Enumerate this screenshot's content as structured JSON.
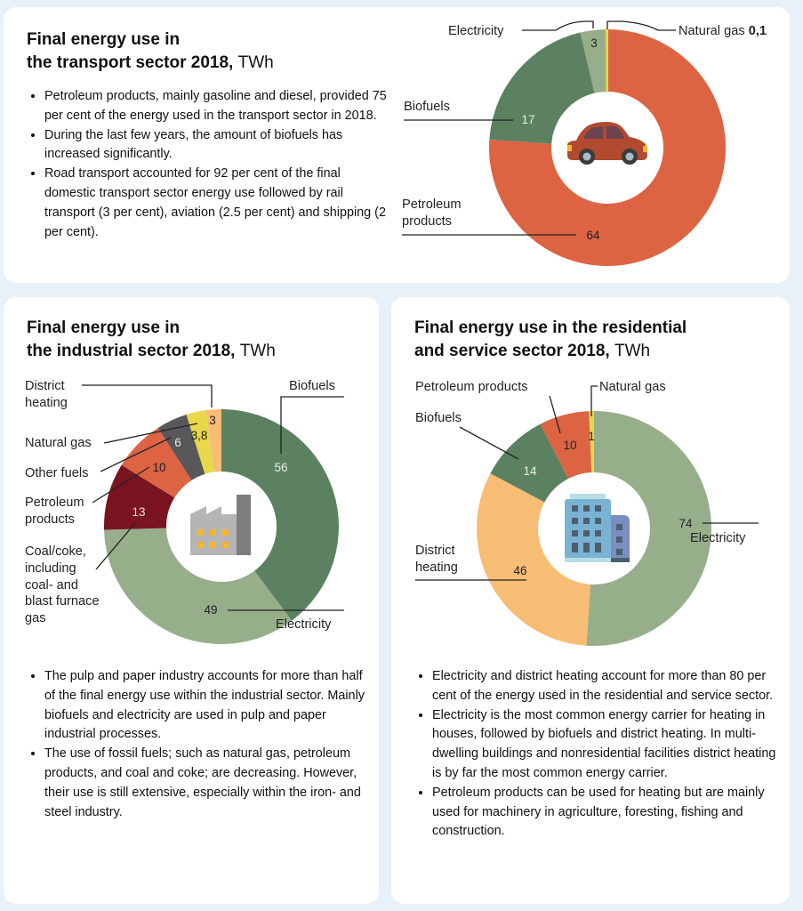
{
  "colors": {
    "background": "#e8f0f8",
    "card": "#ffffff",
    "petroleum_transport": "#dc6443",
    "biofuels": "#5b8160",
    "electricity": "#97ae8a",
    "natural_gas": "#e8d84a",
    "district_heating": "#f8bd75",
    "other_fuels": "#58585a",
    "petroleum_industry": "#dc6443",
    "coal_coke": "#7a1420"
  },
  "transport": {
    "title_bold_line1": "Final energy use in",
    "title_bold_line2": "the transport sector 2018,",
    "title_unit": "TWh",
    "bullets": [
      "Petroleum products, mainly gasoline and diesel, provided 75 per cent of the energy used in the transport sector in 2018.",
      "During the last few years, the amount of biofuels has increased significantly.",
      "Road transport accounted for 92 per cent of the final domestic transport sector energy use followed by rail transport (3 per cent), aviation (2.5 per cent) and shipping (2 per cent)."
    ],
    "center_icon": "car-icon"
  },
  "industry": {
    "title_bold_line1": "Final energy use in",
    "title_bold_line2": "the industrial sector 2018,",
    "title_unit": "TWh",
    "bullets": [
      "The pulp and paper industry accounts for more than half of the final energy use within the industrial sector. Mainly biofuels and electricity are used in pulp and paper industrial processes.",
      "The use of fossil fuels; such as natural gas, petroleum products, and coal and coke; are decreasing. However, their use is still extensive, especially within the iron- and steel industry."
    ],
    "center_icon": "factory-icon"
  },
  "residential": {
    "title_bold_line1": "Final energy use in the residential",
    "title_bold_line2": "and service sector 2018,",
    "title_unit": "TWh",
    "bullets": [
      "Electricity and district heating account for more than 80 per cent of the energy used in the residential and service sector.",
      "Electricity is the most common energy carrier for heating in houses, followed by biofuels and district heating. In multi-dwelling buildings and nonresidential facilities district heating is by far the most common energy carrier.",
      "Petroleum products can be used for heating but are mainly used for machinery in agriculture, foresting, fishing and construction."
    ],
    "center_icon": "office-building-icon"
  },
  "chart_data": [
    {
      "type": "pie",
      "variant": "donut",
      "title": "Final energy use in the transport sector 2018, TWh",
      "unit": "TWh",
      "start": "12 o'clock, clockwise",
      "slices": [
        {
          "key": "petroleum",
          "label": "Petroleum products",
          "value": 64,
          "value_label": "64",
          "color_key": "petroleum_transport"
        },
        {
          "key": "biofuels",
          "label": "Biofuels",
          "value": 17,
          "value_label": "17",
          "color_key": "biofuels"
        },
        {
          "key": "electricity",
          "label": "Electricity",
          "value": 3,
          "value_label": "3",
          "color_key": "electricity"
        },
        {
          "key": "natural_gas",
          "label": "Natural gas",
          "value": 0.1,
          "value_label": "0,1",
          "color_key": "natural_gas"
        }
      ]
    },
    {
      "type": "pie",
      "variant": "donut",
      "title": "Final energy use in the industrial sector 2018, TWh",
      "unit": "TWh",
      "start": "12 o'clock, clockwise",
      "slices": [
        {
          "key": "biofuels",
          "label": "Biofuels",
          "value": 56,
          "value_label": "56",
          "color_key": "biofuels"
        },
        {
          "key": "electricity",
          "label": "Electricity",
          "value": 49,
          "value_label": "49",
          "color_key": "electricity"
        },
        {
          "key": "coal_coke",
          "label": "Coal/coke, including coal- and blast furnace gas",
          "value": 13,
          "value_label": "13",
          "color_key": "coal_coke"
        },
        {
          "key": "petroleum",
          "label": "Petroleum products",
          "value": 10,
          "value_label": "10",
          "color_key": "petroleum_industry"
        },
        {
          "key": "other_fuels",
          "label": "Other fuels",
          "value": 6,
          "value_label": "6",
          "color_key": "other_fuels"
        },
        {
          "key": "natural_gas",
          "label": "Natural gas",
          "value": 3.8,
          "value_label": "3,8",
          "color_key": "natural_gas"
        },
        {
          "key": "district_heating",
          "label": "District heating",
          "value": 3,
          "value_label": "3",
          "color_key": "district_heating"
        }
      ]
    },
    {
      "type": "pie",
      "variant": "donut",
      "title": "Final energy use in the residential and service sector 2018, TWh",
      "unit": "TWh",
      "start": "12 o'clock, clockwise",
      "slices": [
        {
          "key": "electricity",
          "label": "Electricity",
          "value": 74,
          "value_label": "74",
          "color_key": "electricity"
        },
        {
          "key": "district_heating",
          "label": "District heating",
          "value": 46,
          "value_label": "46",
          "color_key": "district_heating"
        },
        {
          "key": "biofuels",
          "label": "Biofuels",
          "value": 14,
          "value_label": "14",
          "color_key": "biofuels"
        },
        {
          "key": "petroleum",
          "label": "Petroleum products",
          "value": 10,
          "value_label": "10",
          "color_key": "petroleum_transport"
        },
        {
          "key": "natural_gas",
          "label": "Natural gas",
          "value": 1,
          "value_label": "1",
          "color_key": "natural_gas"
        }
      ]
    }
  ]
}
